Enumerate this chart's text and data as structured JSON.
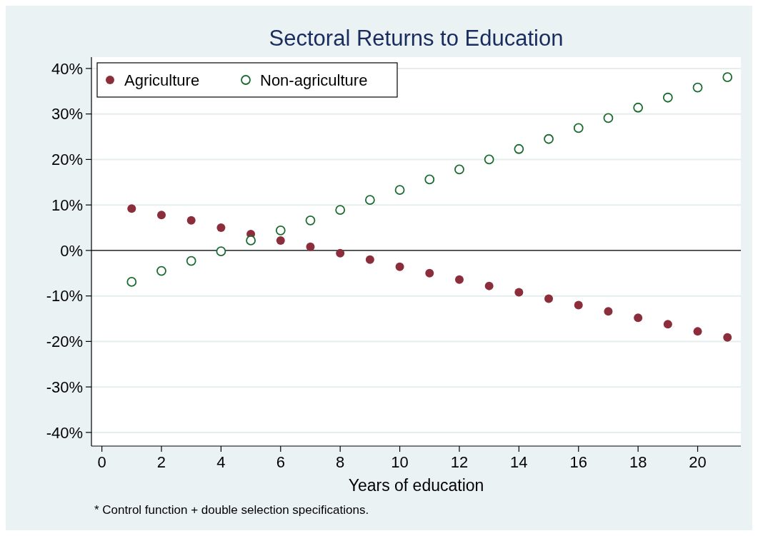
{
  "chart_data": {
    "type": "scatter",
    "title": "Sectoral Returns to Education",
    "xlabel": "Years of education",
    "annotations": [
      "* Control function + double selection specifications."
    ],
    "x": [
      1,
      2,
      3,
      4,
      5,
      6,
      7,
      8,
      9,
      10,
      11,
      12,
      13,
      14,
      15,
      16,
      17,
      18,
      19,
      20,
      21
    ],
    "series": [
      {
        "name": "Agriculture",
        "color": "#8c2d3c",
        "marker": "circle",
        "values": [
          9.2,
          7.8,
          6.6,
          5.0,
          3.6,
          2.2,
          0.8,
          -0.6,
          -2.0,
          -3.6,
          -5.0,
          -6.4,
          -7.8,
          -9.2,
          -10.6,
          -12.0,
          -13.4,
          -14.8,
          -16.2,
          -17.8,
          -19.1
        ]
      },
      {
        "name": "Non-agriculture",
        "color": "#1a6b30",
        "marker": "circle",
        "values": [
          -6.9,
          -4.5,
          -2.3,
          -0.2,
          2.2,
          4.4,
          6.6,
          8.9,
          11.1,
          13.3,
          15.6,
          17.8,
          20.0,
          22.3,
          24.5,
          26.9,
          29.1,
          31.4,
          33.6,
          35.8,
          38.1
        ]
      }
    ],
    "xlim": [
      -0.35,
      21.45
    ],
    "xticks": [
      0,
      2,
      4,
      6,
      8,
      10,
      12,
      14,
      16,
      18,
      20
    ],
    "ylim": [
      -43,
      42.5
    ],
    "yticks": [
      {
        "value": -40,
        "label": "-40%"
      },
      {
        "value": -30,
        "label": "-30%"
      },
      {
        "value": -20,
        "label": "-20%"
      },
      {
        "value": -10,
        "label": "-10%"
      },
      {
        "value": 0,
        "label": "0%"
      },
      {
        "value": 10,
        "label": "10%"
      },
      {
        "value": 20,
        "label": "20%"
      },
      {
        "value": 30,
        "label": "30%"
      },
      {
        "value": 40,
        "label": "40%"
      }
    ],
    "ref_lines": [
      {
        "axis": "y",
        "value": 0,
        "color": "#000000"
      }
    ],
    "grid": "y",
    "legend": "top left"
  }
}
